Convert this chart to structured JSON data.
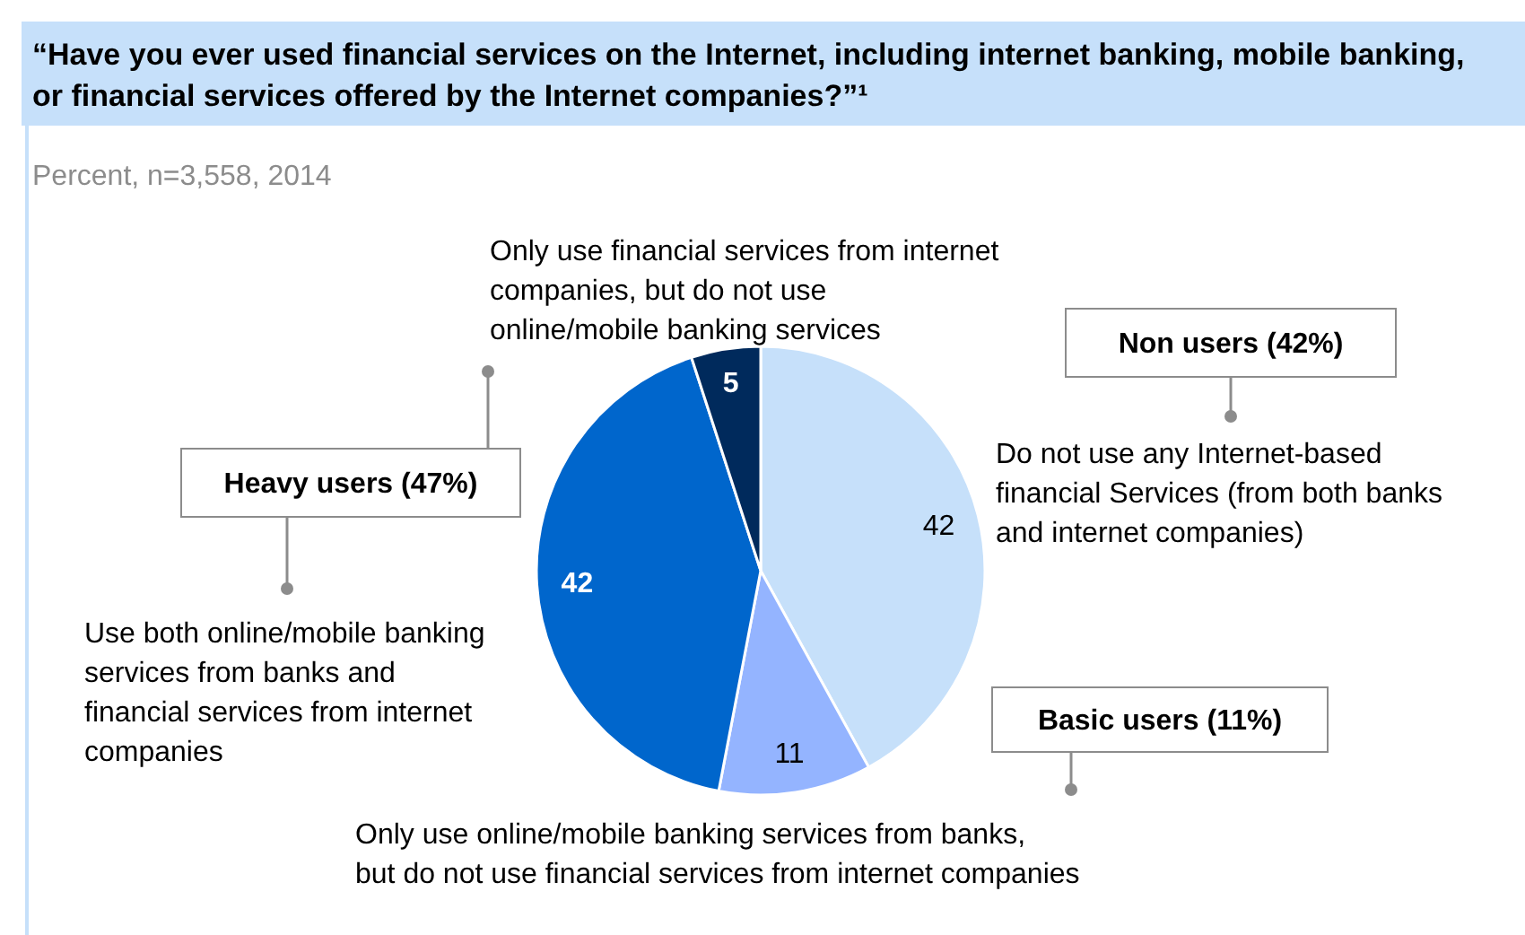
{
  "chart_data": {
    "type": "pie",
    "title": "“Have you ever used financial services on the Internet, including internet banking, mobile banking, or financial services offered by the Internet companies?”¹",
    "subtitle": "Percent, n=3,558, 2014",
    "categories": [
      "Do not use any Internet-based financial Services (from both banks and internet companies)",
      "Only use online/mobile banking services from banks, but do not use financial services from internet companies",
      "Use both online/mobile banking services from banks and financial services from internet companies",
      "Only use financial services from internet companies, but do not use online/mobile banking services"
    ],
    "values": [
      42,
      11,
      42,
      5
    ],
    "colors": [
      "#c6e0fa",
      "#94b4ff",
      "#0066cc",
      "#002a5c"
    ],
    "data_labels": true,
    "annotations": [
      "Non users (42%)",
      "Basic users (11%)",
      "Heavy users (47%)"
    ]
  }
}
